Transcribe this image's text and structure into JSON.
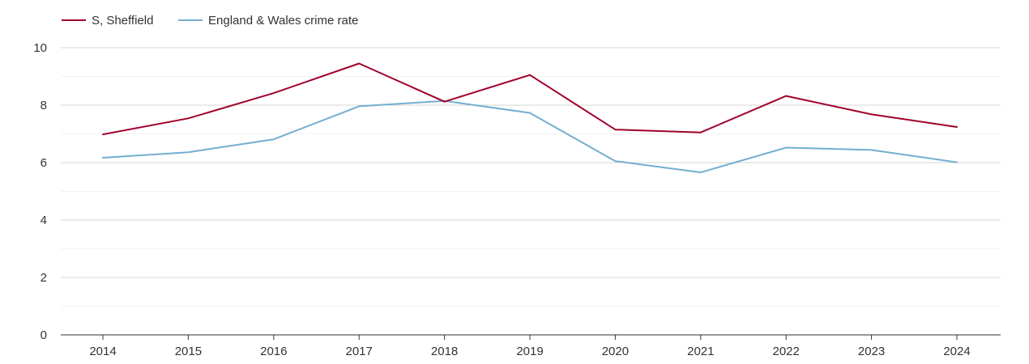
{
  "chart_data": {
    "type": "line",
    "title": "",
    "xlabel": "",
    "ylabel": "",
    "categories": [
      "2014",
      "2015",
      "2016",
      "2017",
      "2018",
      "2019",
      "2020",
      "2021",
      "2022",
      "2023",
      "2024"
    ],
    "ylim": [
      0,
      10
    ],
    "yticks": [
      0,
      2,
      4,
      6,
      8,
      10
    ],
    "ytick_labels": [
      "0",
      "2",
      "4",
      "6",
      "8",
      "10"
    ],
    "grid": true,
    "legend_position": "top-left",
    "series": [
      {
        "name": "S, Sheffield",
        "color": "#a0002a",
        "values": [
          6.98,
          7.54,
          8.42,
          9.45,
          8.12,
          9.05,
          7.15,
          7.05,
          8.32,
          7.68,
          7.24
        ]
      },
      {
        "name": "England & Wales crime rate",
        "color": "#74aed1",
        "values": [
          6.17,
          6.36,
          6.81,
          7.96,
          8.15,
          7.73,
          6.05,
          5.66,
          6.52,
          6.44,
          6.01
        ]
      }
    ]
  }
}
